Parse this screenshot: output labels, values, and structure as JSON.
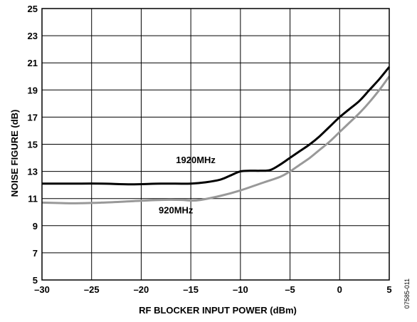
{
  "chart_data": {
    "type": "line",
    "xlabel": "RF BLOCKER INPUT POWER (dBm)",
    "ylabel": "NOISE FIGURE (dB)",
    "xlim": [
      -30,
      5
    ],
    "ylim": [
      5,
      25
    ],
    "xticks": [
      -30,
      -25,
      -20,
      -15,
      -10,
      -5,
      0,
      5
    ],
    "xtick_labels": [
      "–30",
      "–25",
      "–20",
      "–15",
      "–10",
      "–5",
      "0",
      "5"
    ],
    "yticks": [
      5,
      7,
      9,
      11,
      13,
      15,
      17,
      19,
      21,
      23,
      25
    ],
    "ytick_labels": [
      "5",
      "7",
      "9",
      "11",
      "13",
      "15",
      "17",
      "19",
      "21",
      "23",
      "25"
    ],
    "grid": true,
    "series": [
      {
        "name": "1920MHz",
        "color": "#000000",
        "label_at": [
          -14.5,
          13.6
        ],
        "points": [
          [
            -30,
            12.1
          ],
          [
            -27,
            12.1
          ],
          [
            -24,
            12.1
          ],
          [
            -21,
            12.05
          ],
          [
            -18,
            12.1
          ],
          [
            -15,
            12.1
          ],
          [
            -13.5,
            12.2
          ],
          [
            -12,
            12.4
          ],
          [
            -11,
            12.7
          ],
          [
            -10,
            13.0
          ],
          [
            -9,
            13.05
          ],
          [
            -8,
            13.05
          ],
          [
            -7,
            13.1
          ],
          [
            -6,
            13.5
          ],
          [
            -5,
            14.0
          ],
          [
            -4,
            14.5
          ],
          [
            -3,
            15.0
          ],
          [
            -2,
            15.6
          ],
          [
            -1,
            16.3
          ],
          [
            0,
            17.0
          ],
          [
            1,
            17.6
          ],
          [
            2,
            18.2
          ],
          [
            3,
            19.0
          ],
          [
            4,
            19.8
          ],
          [
            5,
            20.7
          ]
        ]
      },
      {
        "name": "920MHz",
        "color": "#999999",
        "label_at": [
          -16.5,
          9.9
        ],
        "points": [
          [
            -30,
            10.7
          ],
          [
            -27,
            10.65
          ],
          [
            -24,
            10.7
          ],
          [
            -21,
            10.8
          ],
          [
            -18,
            10.9
          ],
          [
            -16,
            10.9
          ],
          [
            -15,
            10.85
          ],
          [
            -14,
            10.9
          ],
          [
            -12,
            11.2
          ],
          [
            -10,
            11.6
          ],
          [
            -8,
            12.1
          ],
          [
            -6,
            12.6
          ],
          [
            -5,
            13.0
          ],
          [
            -4,
            13.5
          ],
          [
            -3,
            14.0
          ],
          [
            -2,
            14.6
          ],
          [
            -1,
            15.2
          ],
          [
            0,
            15.9
          ],
          [
            1,
            16.6
          ],
          [
            2,
            17.3
          ],
          [
            3,
            18.1
          ],
          [
            4,
            19.0
          ],
          [
            5,
            20.0
          ]
        ]
      }
    ],
    "figure_id": "07585-011"
  }
}
